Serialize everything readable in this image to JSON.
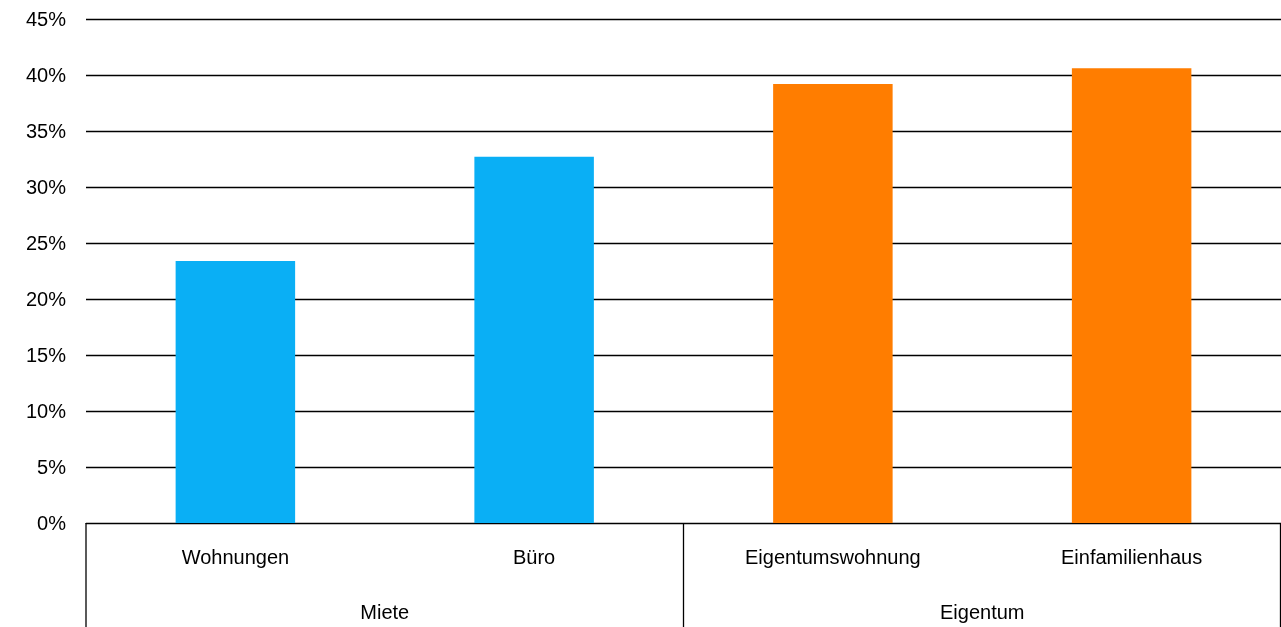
{
  "chart_data": {
    "type": "bar",
    "categories": [
      "Wohnungen",
      "Büro",
      "Eigentumswohnung",
      "Einfamilienhaus"
    ],
    "series": [
      {
        "color": "#0aaff5",
        "values": [
          23.4,
          32.7,
          null,
          null
        ]
      },
      {
        "color": "#ff7d00",
        "values": [
          null,
          null,
          39.2,
          40.6
        ]
      }
    ],
    "annotations": [
      "Miete",
      "Eigentum"
    ],
    "ylim": [
      0,
      45
    ],
    "yticks": [
      {
        "value": 0,
        "label": "0%"
      },
      {
        "value": 5,
        "label": "5%"
      },
      {
        "value": 10,
        "label": "10%"
      },
      {
        "value": 15,
        "label": "15%"
      },
      {
        "value": 20,
        "label": "20%"
      },
      {
        "value": 25,
        "label": "25%"
      },
      {
        "value": 30,
        "label": "30%"
      },
      {
        "value": 35,
        "label": "35%"
      },
      {
        "value": 40,
        "label": "40%"
      },
      {
        "value": 45,
        "label": "45%"
      }
    ],
    "grid": "y"
  }
}
